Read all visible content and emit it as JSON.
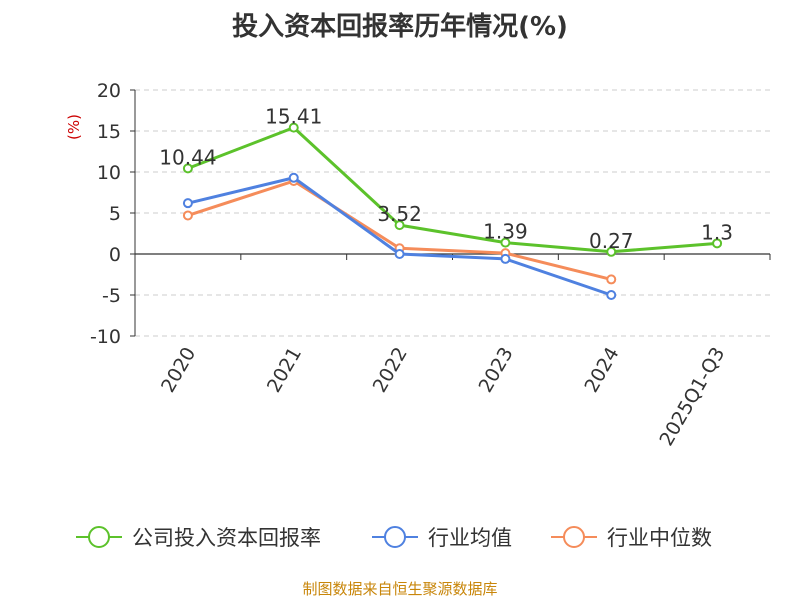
{
  "title": "投入资本回报率历年情况(%)",
  "footer": "制图数据来自恒生聚源数据库",
  "chart_data": {
    "type": "line",
    "title": "投入资本回报率历年情况(%)",
    "ylabel": "(%)",
    "ylim": [
      -10,
      20
    ],
    "yticks": [
      20,
      15,
      10,
      5,
      0,
      -5,
      -10
    ],
    "grid": true,
    "legend_position": "bottom",
    "categories": [
      "2020",
      "2021",
      "2022",
      "2023",
      "2024",
      "2025Q1-Q3"
    ],
    "series": [
      {
        "name": "公司投入资本回报率",
        "color": "#5cc22b",
        "values": [
          10.44,
          15.41,
          3.52,
          1.39,
          0.27,
          1.3
        ],
        "labels": [
          "10.44",
          "15.41",
          "3.52",
          "1.39",
          "0.27",
          "1.3"
        ]
      },
      {
        "name": "行业均值",
        "color": "#4f81e0",
        "values": [
          6.2,
          9.3,
          0.0,
          -0.6,
          -5.0,
          null
        ]
      },
      {
        "name": "行业中位数",
        "color": "#f58c5a",
        "values": [
          4.7,
          8.9,
          0.7,
          0.1,
          -3.1,
          null
        ]
      }
    ]
  }
}
